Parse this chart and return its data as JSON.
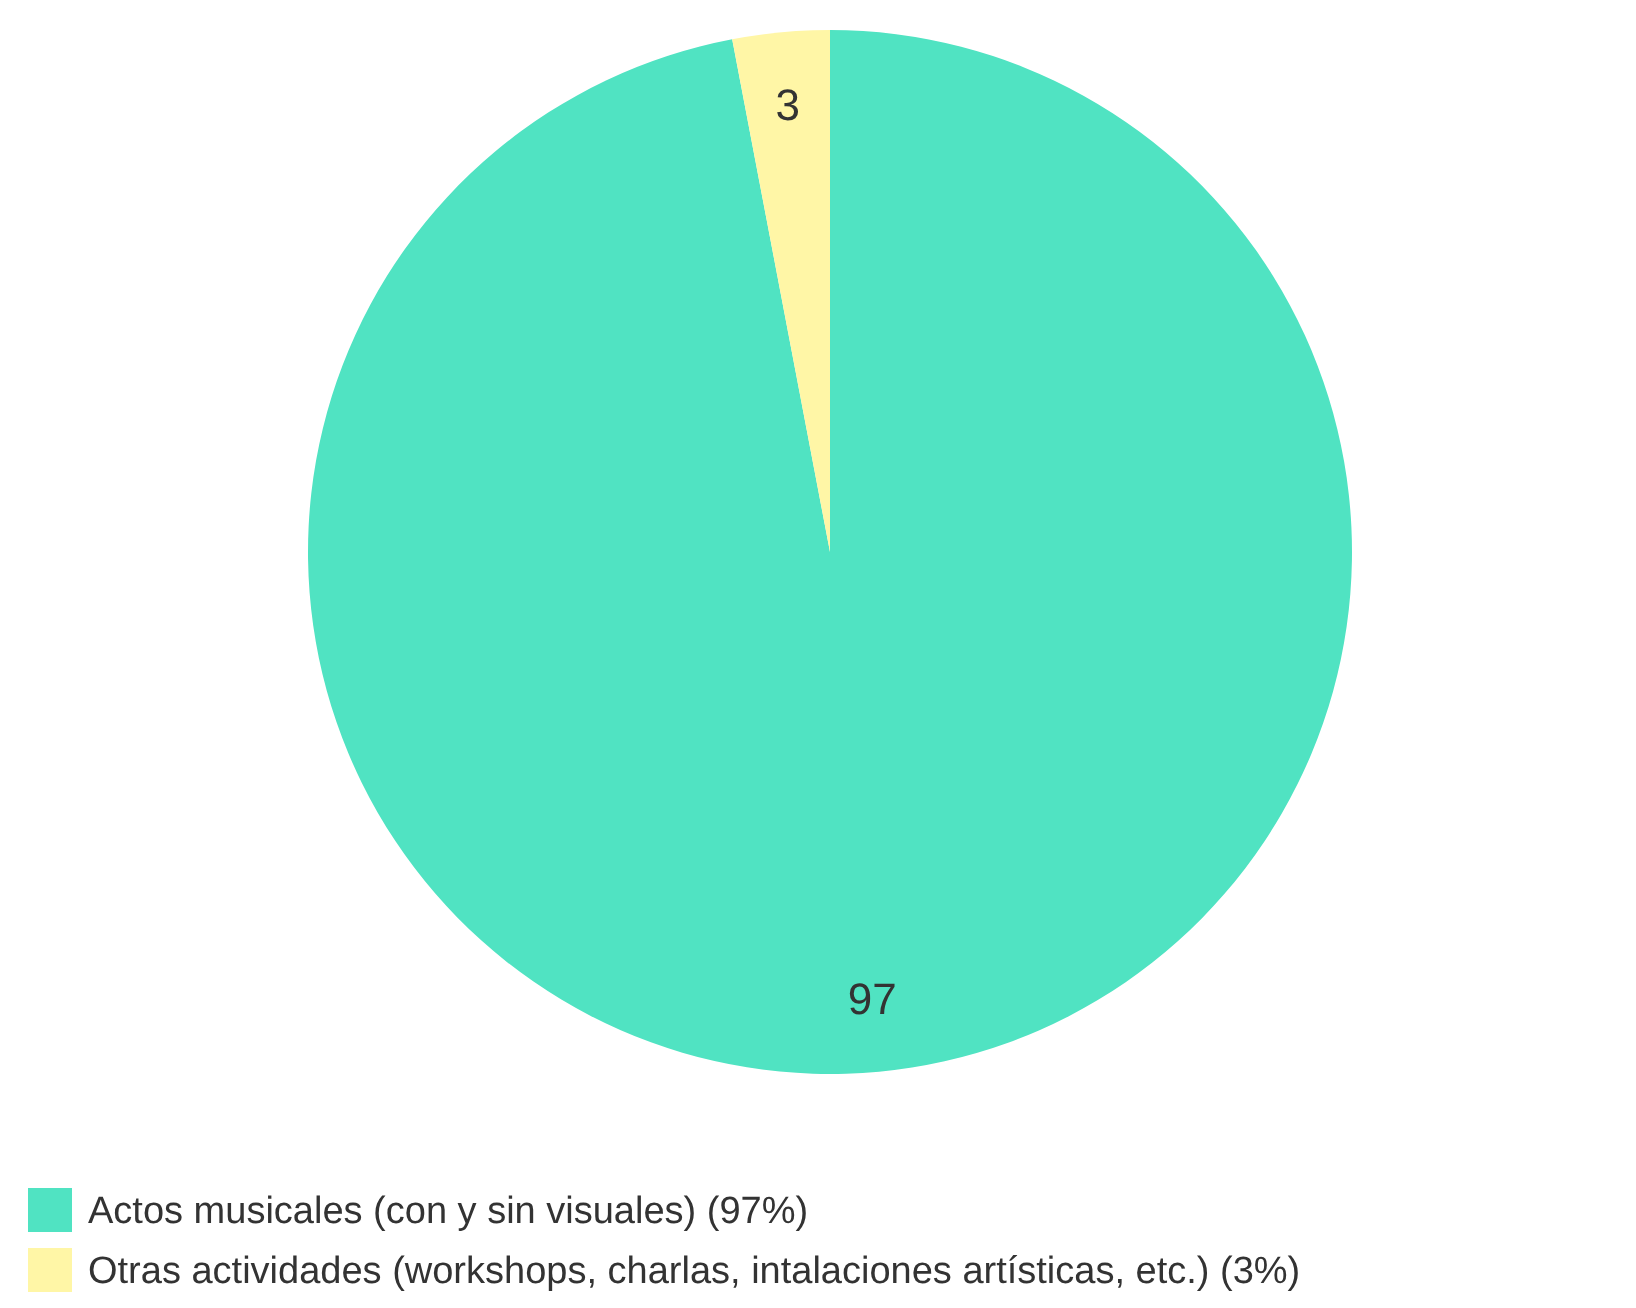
{
  "chart_data": {
    "type": "pie",
    "categories": [
      "Actos musicales (con y sin visuales) (97%)",
      "Otras actividades (workshops, charlas, intalaciones artísticas, etc.) (3%)"
    ],
    "values": [
      97,
      3
    ],
    "colors": [
      "#50e3c2",
      "#fff6a6"
    ],
    "data_labels": true,
    "legend": "bottom left"
  }
}
